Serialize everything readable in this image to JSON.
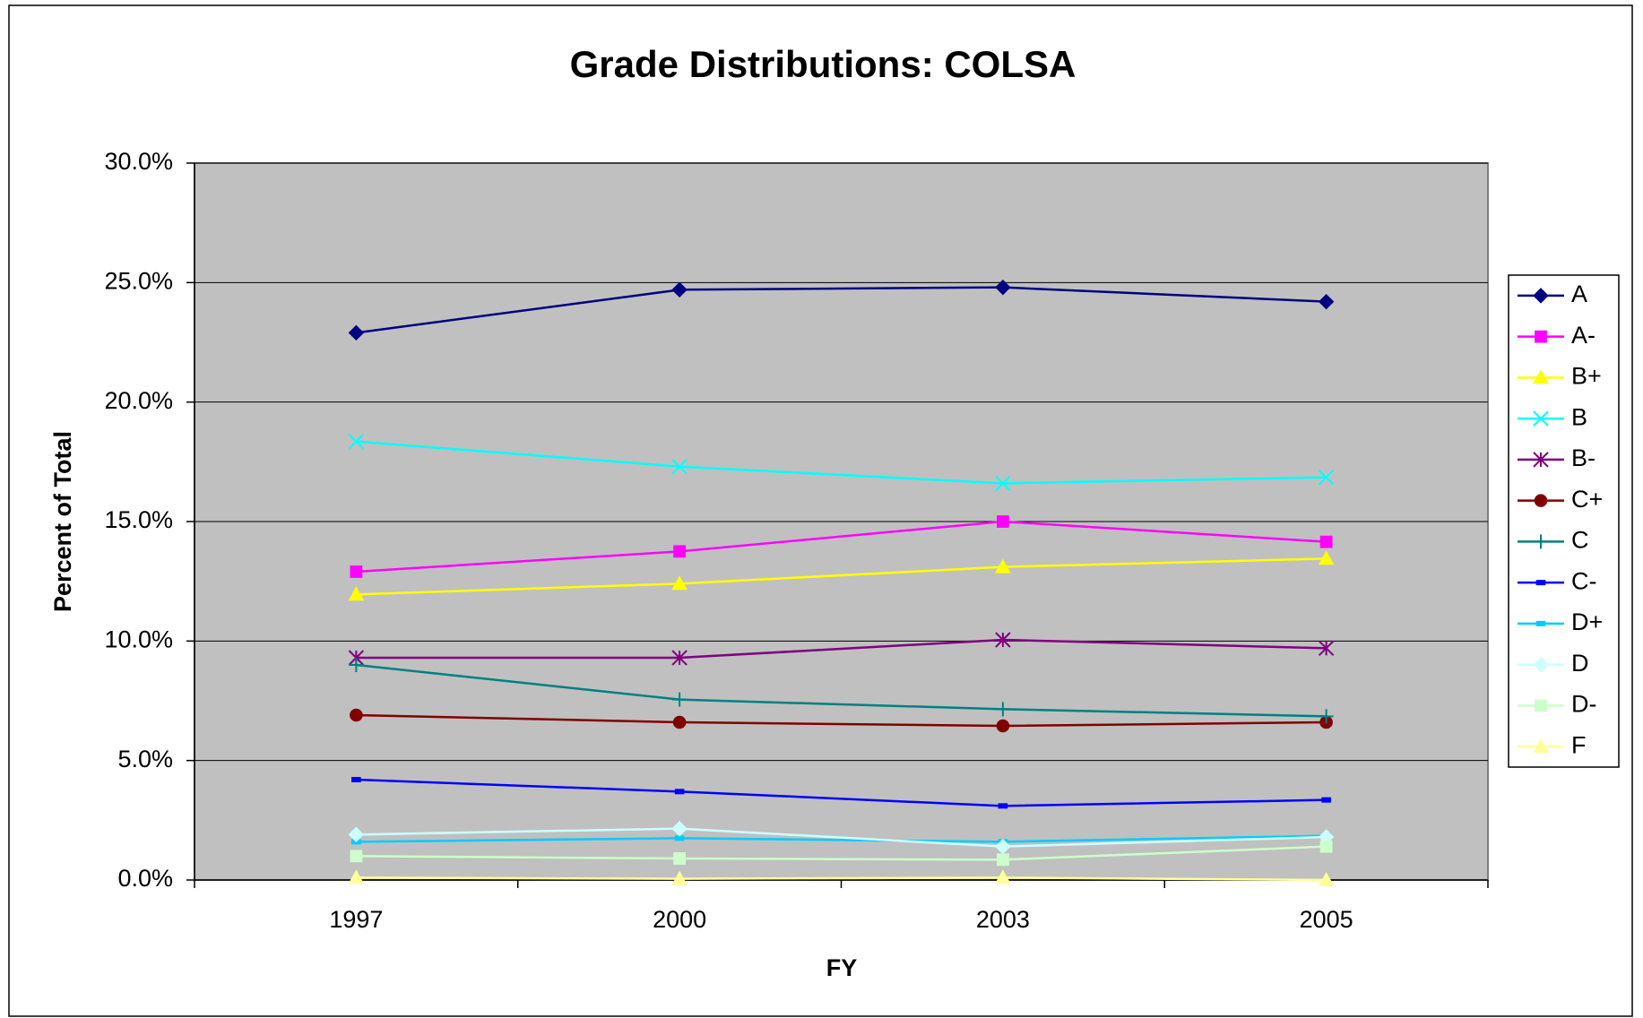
{
  "chart_data": {
    "type": "line",
    "title": "Grade Distributions: COLSA",
    "x_label": "FY",
    "y_label": "Percent of Total",
    "categories": [
      "1997",
      "2000",
      "2003",
      "2005"
    ],
    "ylim": [
      0,
      30
    ],
    "yticks": [
      {
        "value": 0,
        "label": "0.0%"
      },
      {
        "value": 5,
        "label": "5.0%"
      },
      {
        "value": 10,
        "label": "10.0%"
      },
      {
        "value": 15,
        "label": "15.0%"
      },
      {
        "value": 20,
        "label": "20.0%"
      },
      {
        "value": 25,
        "label": "25.0%"
      },
      {
        "value": 30,
        "label": "30.0%"
      }
    ],
    "grid": true,
    "plot_background": "#c0c0c0",
    "legend": "right",
    "series": [
      {
        "name": "A",
        "color": "#000080",
        "marker": "diamond",
        "values": [
          22.9,
          24.7,
          24.8,
          24.2
        ]
      },
      {
        "name": "A-",
        "color": "#ff00ff",
        "marker": "square",
        "values": [
          12.9,
          13.75,
          15.0,
          14.15
        ]
      },
      {
        "name": "B+",
        "color": "#ffff00",
        "marker": "triangle",
        "values": [
          11.95,
          12.4,
          13.1,
          13.45
        ]
      },
      {
        "name": "B",
        "color": "#00ffff",
        "marker": "x",
        "values": [
          18.35,
          17.3,
          16.6,
          16.85
        ]
      },
      {
        "name": "B-",
        "color": "#800080",
        "marker": "star",
        "values": [
          9.3,
          9.3,
          10.05,
          9.7
        ]
      },
      {
        "name": "C+",
        "color": "#800000",
        "marker": "circle",
        "values": [
          6.9,
          6.6,
          6.45,
          6.6
        ]
      },
      {
        "name": "C",
        "color": "#008080",
        "marker": "plus",
        "values": [
          9.0,
          7.55,
          7.15,
          6.85
        ]
      },
      {
        "name": "C-",
        "color": "#0000ff",
        "marker": "dash",
        "values": [
          4.2,
          3.7,
          3.1,
          3.35
        ]
      },
      {
        "name": "D+",
        "color": "#00ccff",
        "marker": "dash",
        "values": [
          1.6,
          1.75,
          1.6,
          1.85
        ]
      },
      {
        "name": "D",
        "color": "#ccffff",
        "marker": "diamond",
        "values": [
          1.9,
          2.15,
          1.4,
          1.8
        ]
      },
      {
        "name": "D-",
        "color": "#ccffcc",
        "marker": "square",
        "values": [
          1.0,
          0.9,
          0.85,
          1.4
        ]
      },
      {
        "name": "F",
        "color": "#ffff99",
        "marker": "triangle",
        "values": [
          0.1,
          0.05,
          0.1,
          0.0
        ]
      }
    ]
  }
}
